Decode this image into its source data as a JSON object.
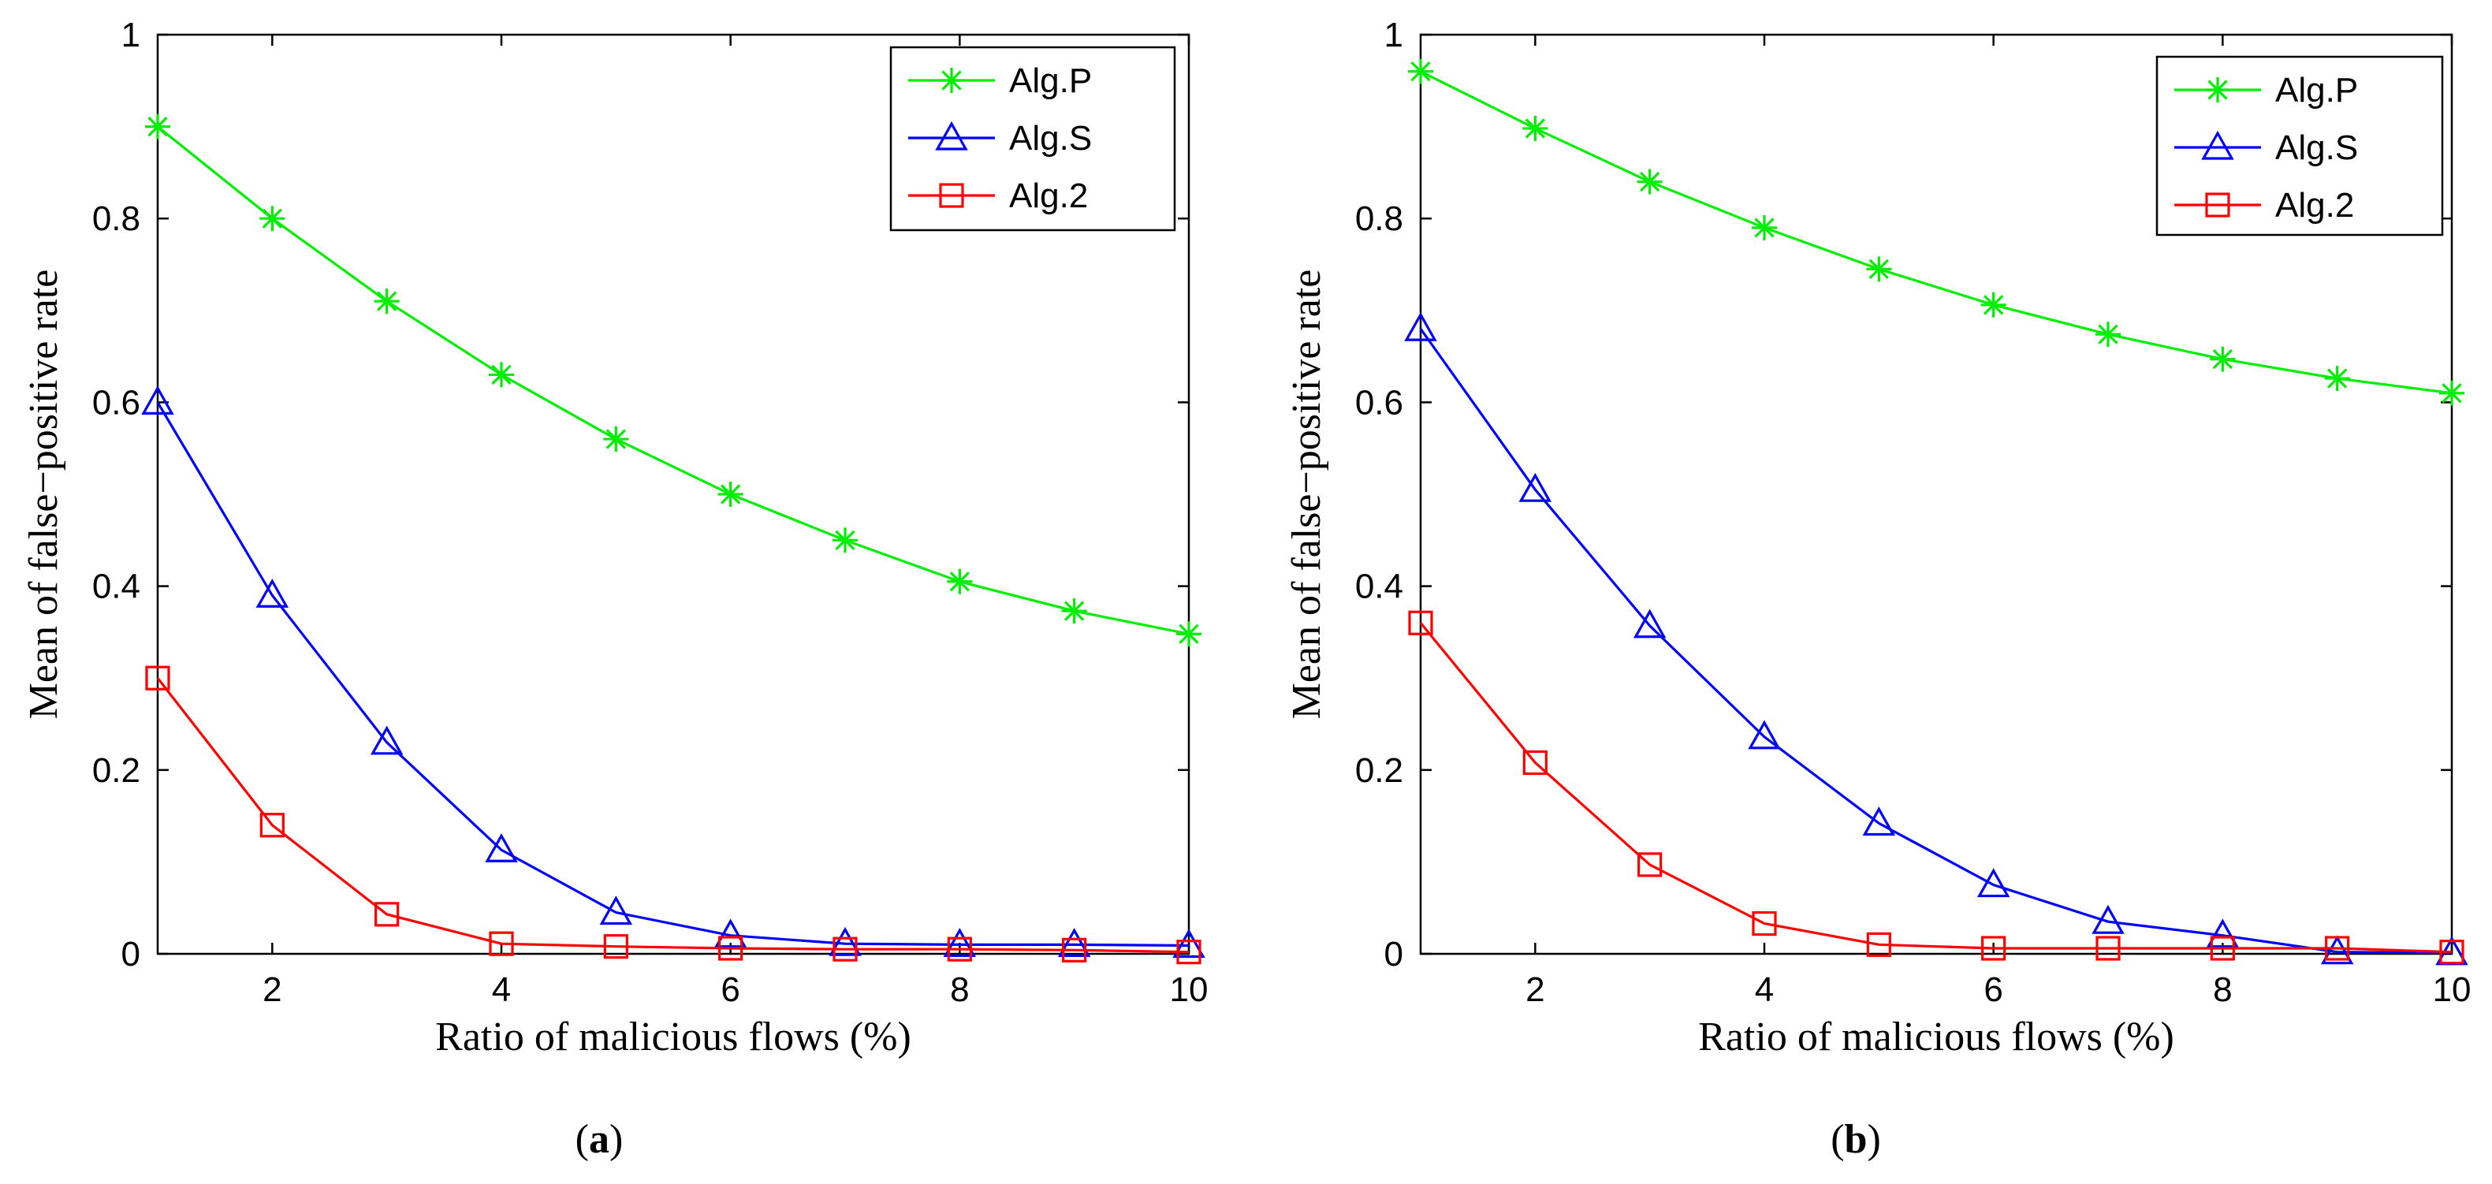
{
  "chart_data": [
    {
      "type": "line",
      "caption": "(a)",
      "caption_letter": "a",
      "xlabel": "Ratio of malicious flows (%)",
      "ylabel": "Mean of false−positive rate",
      "xlim": [
        1,
        10
      ],
      "ylim": [
        0,
        1
      ],
      "x": [
        1,
        2,
        3,
        4,
        5,
        6,
        7,
        8,
        9,
        10
      ],
      "xticks": [
        2,
        4,
        6,
        8,
        10
      ],
      "yticks": [
        0,
        0.2,
        0.4,
        0.6,
        0.8,
        1
      ],
      "ytick_labels": [
        "0",
        "0.2",
        "0.4",
        "0.6",
        "0.8",
        "1"
      ],
      "legend_position": "top-right",
      "series": [
        {
          "name": "Alg.P",
          "color": "#00ee00",
          "marker": "star",
          "values": [
            0.9,
            0.8,
            0.71,
            0.63,
            0.56,
            0.5,
            0.45,
            0.405,
            0.373,
            0.348
          ]
        },
        {
          "name": "Alg.S",
          "color": "#0000ff",
          "marker": "triangle",
          "values": [
            0.6,
            0.39,
            0.23,
            0.113,
            0.045,
            0.02,
            0.011,
            0.01,
            0.01,
            0.009
          ]
        },
        {
          "name": "Alg.2",
          "color": "#ff0000",
          "marker": "square",
          "values": [
            0.3,
            0.14,
            0.043,
            0.011,
            0.008,
            0.006,
            0.005,
            0.005,
            0.004,
            0.002
          ]
        }
      ]
    },
    {
      "type": "line",
      "caption": "(b)",
      "caption_letter": "b",
      "xlabel": "Ratio of malicious flows (%)",
      "ylabel": "Mean of false−positive rate",
      "xlim": [
        1,
        10
      ],
      "ylim": [
        0,
        1
      ],
      "x": [
        1,
        2,
        3,
        4,
        5,
        6,
        7,
        8,
        9,
        10
      ],
      "xticks": [
        2,
        4,
        6,
        8,
        10
      ],
      "yticks": [
        0,
        0.2,
        0.4,
        0.6,
        0.8,
        1
      ],
      "ytick_labels": [
        "0",
        "0.2",
        "0.4",
        "0.6",
        "0.8",
        "1"
      ],
      "legend_position": "top-right",
      "series": [
        {
          "name": "Alg.P",
          "color": "#00ee00",
          "marker": "star",
          "values": [
            0.96,
            0.898,
            0.84,
            0.79,
            0.745,
            0.706,
            0.674,
            0.647,
            0.626,
            0.61
          ]
        },
        {
          "name": "Alg.S",
          "color": "#0000ff",
          "marker": "triangle",
          "values": [
            0.68,
            0.505,
            0.357,
            0.236,
            0.142,
            0.075,
            0.035,
            0.02,
            0.002,
            0.001
          ]
        },
        {
          "name": "Alg.2",
          "color": "#ff0000",
          "marker": "square",
          "values": [
            0.36,
            0.208,
            0.097,
            0.033,
            0.01,
            0.006,
            0.006,
            0.006,
            0.006,
            0.002
          ]
        }
      ]
    }
  ]
}
